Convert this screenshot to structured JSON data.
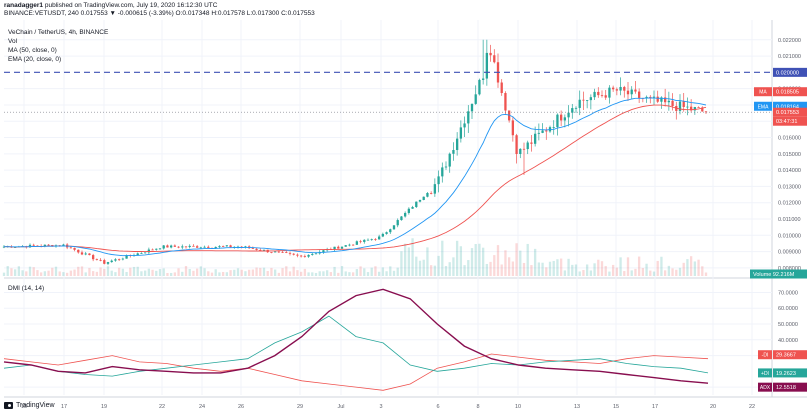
{
  "header": {
    "author": "ranadagger1",
    "published_text": "published on TradingView.com, July 19, 2020 16:12:30 UTC",
    "ticker_line": "BINANCE:VETUSDT, 240  0.017553  ▼ -0.000615 (-3.39%)  O:0.017348  H:0.017578  L:0.017300  C:0.017553"
  },
  "legend": {
    "title": "VeChain / TetherUS, 4h, BINANCE",
    "vol": "Vol",
    "ma": "MA (50, close, 0)",
    "ema": "EMA (20, close, 0)"
  },
  "dmi_title": "DMI (14, 14)",
  "footer": {
    "brand": "TradingView"
  },
  "colors": {
    "up": "#26a69a",
    "down": "#ef5350",
    "ma": "#ef5350",
    "ema": "#2196f3",
    "plus_di": "#26a69a",
    "minus_di": "#ef5350",
    "adx": "#880e4f",
    "resistance": "#3f51b5",
    "grid": "#f0f3fa",
    "axis_text": "#5d606b"
  },
  "chart_data": [
    {
      "type": "candlestick",
      "title": "VeChain / TetherUS, 4h, BINANCE",
      "x_ticks": [
        "15",
        "17",
        "19",
        "22",
        "24",
        "26",
        "29",
        "Jul",
        "3",
        "6",
        "8",
        "10",
        "13",
        "15",
        "17",
        "20",
        "22"
      ],
      "y_ticks": [
        "0.022000",
        "0.021000",
        "0.019000",
        "0.018000",
        "0.017000",
        "0.016000",
        "0.015000",
        "0.014000",
        "0.013000",
        "0.012000",
        "0.011000",
        "0.010000",
        "0.009000",
        "0.008000"
      ],
      "ylim": [
        0.0075,
        0.0226
      ],
      "resistance_level": 0.02,
      "resistance_label": "0.020000",
      "markers": [
        {
          "label": "MA",
          "value": "0.018505",
          "color": "#ef5350"
        },
        {
          "label": "EMA",
          "value": "0.018164",
          "color": "#2196f3"
        },
        {
          "label": "",
          "value": "0.017553",
          "color": "#ef5350"
        },
        {
          "label": "",
          "value": "03:47:31",
          "color": "#ef5350"
        }
      ],
      "volume_label": "Volume",
      "volume_value": "92.216M",
      "key_prices": [
        {
          "when": "start",
          "value": 0.0093
        },
        {
          "when": "Jun 17",
          "value": 0.0094
        },
        {
          "when": "Jun 19",
          "value": 0.0083
        },
        {
          "when": "Jun 22",
          "value": 0.0093
        },
        {
          "when": "Jun 26",
          "value": 0.0093
        },
        {
          "when": "Jun 29",
          "value": 0.0087
        },
        {
          "when": "Jul 3",
          "value": 0.0099
        },
        {
          "when": "Jul 6",
          "value": 0.0133
        },
        {
          "when": "Jul 8",
          "value": 0.02
        },
        {
          "when": "Jul 8 high",
          "value": 0.022
        },
        {
          "when": "Jul 10",
          "value": 0.015
        },
        {
          "when": "Jul 13",
          "value": 0.0182
        },
        {
          "when": "Jul 15",
          "value": 0.0189
        },
        {
          "when": "Jul 17",
          "value": 0.0182
        },
        {
          "when": "last",
          "value": 0.017553
        }
      ]
    },
    {
      "type": "line",
      "title": "DMI (14, 14)",
      "y_ticks": [
        "70.0000",
        "60.0000",
        "50.0000",
        "40.0000",
        "30.0000",
        "10.0000"
      ],
      "ylim": [
        5,
        76
      ],
      "series": [
        {
          "name": "-DI",
          "last": "29.3667",
          "values": [
            28,
            26,
            24,
            27,
            30,
            26,
            25,
            22,
            20,
            22,
            18,
            14,
            12,
            10,
            8,
            12,
            22,
            26,
            31,
            29,
            27,
            26,
            25,
            28,
            30,
            29,
            28
          ]
        },
        {
          "name": "+DI",
          "last": "19.2623",
          "values": [
            22,
            24,
            20,
            18,
            17,
            20,
            22,
            24,
            26,
            28,
            38,
            45,
            55,
            42,
            38,
            24,
            20,
            22,
            25,
            24,
            26,
            27,
            28,
            25,
            23,
            22,
            19
          ]
        },
        {
          "name": "ADX",
          "last": "12.5518",
          "values": [
            26,
            24,
            20,
            19,
            23,
            21,
            20,
            19,
            19,
            22,
            30,
            42,
            58,
            68,
            72,
            66,
            50,
            36,
            28,
            24,
            22,
            21,
            20,
            18,
            16,
            14,
            12.5
          ]
        }
      ]
    }
  ]
}
